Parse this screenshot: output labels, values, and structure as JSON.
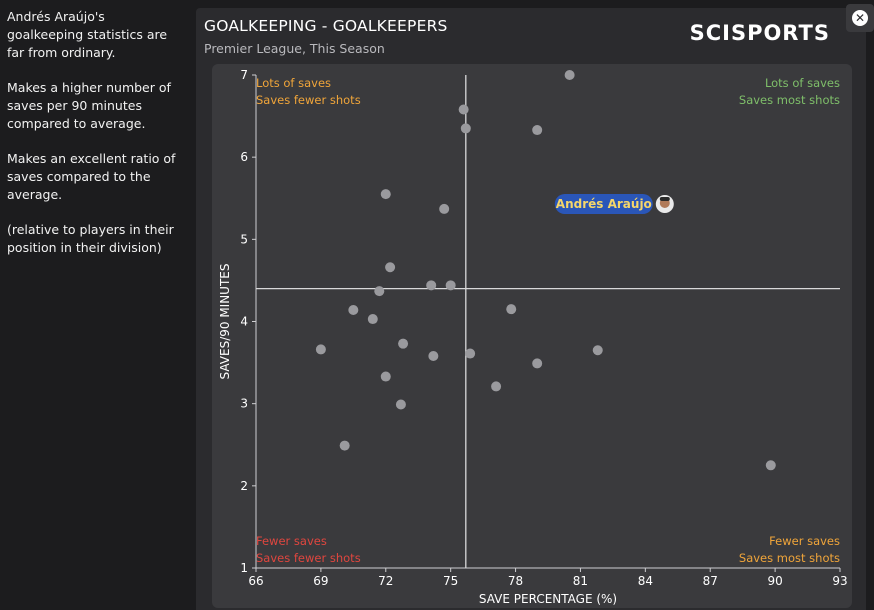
{
  "sidebar": {
    "paragraphs": [
      "Andrés Araújo's goalkeeping statistics are far from ordinary.",
      "Makes a higher number of saves per 90 minutes compared to average.",
      "Makes an excellent ratio of saves compared to the average.",
      "(relative to players in their position in their division)"
    ]
  },
  "header": {
    "title": "GOALKEEPING - GOALKEEPERS",
    "subtitle": "Premier League, This Season",
    "logo": "SCISPORTS",
    "close_icon": "close-icon"
  },
  "colors": {
    "top_right": "#7fbf6a",
    "top_left": "#f0a53a",
    "bottom_right": "#f0a53a",
    "bottom_left": "#e0463f",
    "point": "#9a9a9e",
    "highlight_bg": "#2a56b8",
    "highlight_text": "#f5d66a"
  },
  "chart_data": {
    "type": "scatter",
    "xlabel": "SAVE PERCENTAGE (%)",
    "ylabel": "SAVES/90 MINUTES",
    "xlim": [
      66,
      93
    ],
    "ylim": [
      1,
      7
    ],
    "xticks": [
      66,
      69,
      72,
      75,
      78,
      81,
      84,
      87,
      90,
      93
    ],
    "yticks": [
      1,
      2,
      3,
      4,
      5,
      6,
      7
    ],
    "average_x": 75.7,
    "average_y": 4.4,
    "quadrants": {
      "top_left": [
        "Lots of saves",
        "Saves fewer shots"
      ],
      "top_right": [
        "Lots of saves",
        "Saves most shots"
      ],
      "bottom_left": [
        "Fewer saves",
        "Saves fewer shots"
      ],
      "bottom_right": [
        "Fewer saves",
        "Saves most shots"
      ]
    },
    "points": [
      {
        "x": 80.5,
        "y": 7.0
      },
      {
        "x": 75.6,
        "y": 6.58
      },
      {
        "x": 75.7,
        "y": 6.35
      },
      {
        "x": 79.0,
        "y": 6.33
      },
      {
        "x": 72.0,
        "y": 5.55
      },
      {
        "x": 74.7,
        "y": 5.37
      },
      {
        "x": 72.2,
        "y": 4.66
      },
      {
        "x": 74.1,
        "y": 4.44
      },
      {
        "x": 75.0,
        "y": 4.44
      },
      {
        "x": 71.7,
        "y": 4.37
      },
      {
        "x": 70.5,
        "y": 4.14
      },
      {
        "x": 71.4,
        "y": 4.03
      },
      {
        "x": 77.8,
        "y": 4.15
      },
      {
        "x": 69.0,
        "y": 3.66
      },
      {
        "x": 72.8,
        "y": 3.73
      },
      {
        "x": 74.2,
        "y": 3.58
      },
      {
        "x": 75.9,
        "y": 3.61
      },
      {
        "x": 81.8,
        "y": 3.65
      },
      {
        "x": 79.0,
        "y": 3.49
      },
      {
        "x": 72.0,
        "y": 3.33
      },
      {
        "x": 77.1,
        "y": 3.21
      },
      {
        "x": 72.7,
        "y": 2.99
      },
      {
        "x": 70.1,
        "y": 2.49
      },
      {
        "x": 89.8,
        "y": 2.25
      }
    ],
    "highlight": {
      "label": "Andrés Araújo",
      "x": 84.9,
      "y": 5.43
    }
  }
}
